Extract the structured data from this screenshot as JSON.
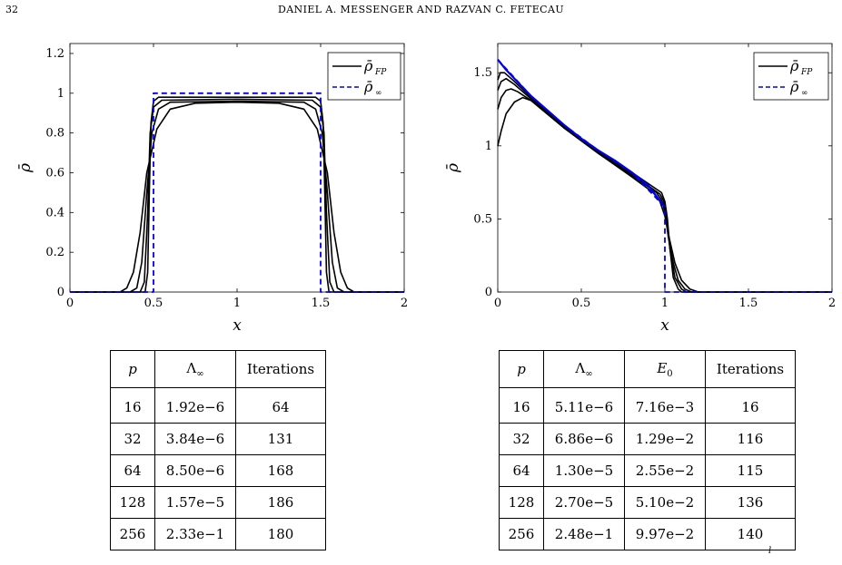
{
  "header": {
    "page_number": "32",
    "running_head": "DANIEL A. MESSENGER AND RAZVAN C. FETECAU"
  },
  "colors": {
    "black": "#000000",
    "blue": "#0000ee"
  },
  "chart_data": [
    {
      "type": "line",
      "xlabel": "x",
      "ylabel": "ρ̄",
      "xlim": [
        0,
        2
      ],
      "ylim": [
        0,
        1.25
      ],
      "xticks": [
        "0",
        "0.5",
        "1",
        "1.5",
        "2"
      ],
      "yticks": [
        "0",
        "0.2",
        "0.4",
        "0.6",
        "0.8",
        "1",
        "1.2"
      ],
      "xtick_values": [
        0,
        0.5,
        1,
        1.5,
        2
      ],
      "ytick_values": [
        0,
        0.2,
        0.4,
        0.6,
        0.8,
        1,
        1.2
      ],
      "legend": {
        "placement": "top-right",
        "entries": [
          {
            "label": "ρ̄",
            "sub": "FP",
            "style": "solid-black"
          },
          {
            "label": "ρ̄",
            "sub": "∞",
            "style": "dashed-blue"
          }
        ]
      },
      "series": [
        {
          "name": "ρ̄FP",
          "values_xy": [
            [
              0,
              0
            ],
            [
              0.3,
              0
            ],
            [
              0.34,
              0.02
            ],
            [
              0.38,
              0.1
            ],
            [
              0.42,
              0.3
            ],
            [
              0.46,
              0.6
            ],
            [
              0.52,
              0.82
            ],
            [
              0.6,
              0.92
            ],
            [
              0.75,
              0.95
            ],
            [
              1,
              0.955
            ],
            [
              1.25,
              0.95
            ],
            [
              1.4,
              0.92
            ],
            [
              1.48,
              0.82
            ],
            [
              1.54,
              0.6
            ],
            [
              1.58,
              0.3
            ],
            [
              1.62,
              0.1
            ],
            [
              1.66,
              0.02
            ],
            [
              1.7,
              0
            ],
            [
              2,
              0
            ]
          ]
        },
        {
          "name": "ρ̄FP",
          "values_xy": [
            [
              0,
              0
            ],
            [
              0.36,
              0
            ],
            [
              0.4,
              0.02
            ],
            [
              0.43,
              0.15
            ],
            [
              0.46,
              0.5
            ],
            [
              0.49,
              0.8
            ],
            [
              0.53,
              0.92
            ],
            [
              0.6,
              0.955
            ],
            [
              1,
              0.96
            ],
            [
              1.4,
              0.955
            ],
            [
              1.47,
              0.92
            ],
            [
              1.51,
              0.8
            ],
            [
              1.54,
              0.5
            ],
            [
              1.57,
              0.15
            ],
            [
              1.6,
              0.02
            ],
            [
              1.64,
              0
            ],
            [
              2,
              0
            ]
          ]
        },
        {
          "name": "ρ̄FP",
          "values_xy": [
            [
              0,
              0
            ],
            [
              0.42,
              0
            ],
            [
              0.445,
              0.05
            ],
            [
              0.465,
              0.4
            ],
            [
              0.48,
              0.8
            ],
            [
              0.5,
              0.93
            ],
            [
              0.55,
              0.965
            ],
            [
              1,
              0.97
            ],
            [
              1.45,
              0.965
            ],
            [
              1.5,
              0.93
            ],
            [
              1.52,
              0.8
            ],
            [
              1.535,
              0.4
            ],
            [
              1.555,
              0.05
            ],
            [
              1.58,
              0
            ],
            [
              2,
              0
            ]
          ]
        },
        {
          "name": "ρ̄FP",
          "values_xy": [
            [
              0,
              0
            ],
            [
              0.45,
              0
            ],
            [
              0.465,
              0.1
            ],
            [
              0.475,
              0.5
            ],
            [
              0.485,
              0.85
            ],
            [
              0.5,
              0.96
            ],
            [
              0.53,
              0.98
            ],
            [
              1,
              0.98
            ],
            [
              1.47,
              0.98
            ],
            [
              1.5,
              0.96
            ],
            [
              1.515,
              0.85
            ],
            [
              1.525,
              0.5
            ],
            [
              1.535,
              0.1
            ],
            [
              1.55,
              0
            ],
            [
              2,
              0
            ]
          ]
        },
        {
          "name": "ρ̄∞",
          "dashed": true,
          "values_xy": [
            [
              0,
              0
            ],
            [
              0.5,
              0
            ],
            [
              0.5,
              1
            ],
            [
              1.5,
              1
            ],
            [
              1.5,
              0
            ],
            [
              2,
              0
            ]
          ]
        }
      ]
    },
    {
      "type": "line",
      "xlabel": "x",
      "ylabel": "ρ̄",
      "xlim": [
        0,
        2
      ],
      "ylim": [
        0,
        1.7
      ],
      "xticks": [
        "0",
        "0.5",
        "1",
        "1.5",
        "2"
      ],
      "yticks": [
        "0",
        "0.5",
        "1",
        "1.5"
      ],
      "xtick_values": [
        0,
        0.5,
        1,
        1.5,
        2
      ],
      "ytick_values": [
        0,
        0.5,
        1,
        1.5
      ],
      "legend": {
        "placement": "top-right",
        "entries": [
          {
            "label": "ρ̄",
            "sub": "FP",
            "style": "solid-black"
          },
          {
            "label": "ρ̄",
            "sub": "∞",
            "style": "dashed-blue"
          }
        ]
      },
      "series": [
        {
          "name": "ρ̄FP",
          "values_xy": [
            [
              0,
              1
            ],
            [
              0.02,
              1.1
            ],
            [
              0.05,
              1.22
            ],
            [
              0.1,
              1.3
            ],
            [
              0.15,
              1.33
            ],
            [
              0.2,
              1.31
            ],
            [
              0.4,
              1.12
            ],
            [
              0.6,
              0.95
            ],
            [
              0.8,
              0.79
            ],
            [
              0.93,
              0.68
            ],
            [
              0.97,
              0.62
            ],
            [
              1,
              0.52
            ],
            [
              1.03,
              0.35
            ],
            [
              1.06,
              0.2
            ],
            [
              1.1,
              0.08
            ],
            [
              1.15,
              0.02
            ],
            [
              1.2,
              0
            ],
            [
              2,
              0
            ]
          ]
        },
        {
          "name": "ρ̄FP",
          "values_xy": [
            [
              0,
              1.25
            ],
            [
              0.02,
              1.33
            ],
            [
              0.05,
              1.38
            ],
            [
              0.08,
              1.39
            ],
            [
              0.12,
              1.37
            ],
            [
              0.2,
              1.31
            ],
            [
              0.4,
              1.12
            ],
            [
              0.6,
              0.95
            ],
            [
              0.8,
              0.8
            ],
            [
              0.95,
              0.68
            ],
            [
              0.98,
              0.63
            ],
            [
              1,
              0.55
            ],
            [
              1.02,
              0.38
            ],
            [
              1.05,
              0.2
            ],
            [
              1.08,
              0.08
            ],
            [
              1.12,
              0.02
            ],
            [
              1.16,
              0
            ],
            [
              2,
              0
            ]
          ]
        },
        {
          "name": "ρ̄FP",
          "values_xy": [
            [
              0,
              1.38
            ],
            [
              0.02,
              1.44
            ],
            [
              0.05,
              1.46
            ],
            [
              0.1,
              1.42
            ],
            [
              0.2,
              1.32
            ],
            [
              0.4,
              1.12
            ],
            [
              0.6,
              0.96
            ],
            [
              0.8,
              0.81
            ],
            [
              0.97,
              0.67
            ],
            [
              0.99,
              0.63
            ],
            [
              1.01,
              0.5
            ],
            [
              1.03,
              0.3
            ],
            [
              1.06,
              0.1
            ],
            [
              1.1,
              0.02
            ],
            [
              1.13,
              0
            ],
            [
              2,
              0
            ]
          ]
        },
        {
          "name": "ρ̄FP",
          "values_xy": [
            [
              0,
              1.45
            ],
            [
              0.015,
              1.5
            ],
            [
              0.04,
              1.5
            ],
            [
              0.1,
              1.44
            ],
            [
              0.2,
              1.33
            ],
            [
              0.4,
              1.13
            ],
            [
              0.6,
              0.97
            ],
            [
              0.8,
              0.82
            ],
            [
              0.98,
              0.68
            ],
            [
              1,
              0.62
            ],
            [
              1.015,
              0.5
            ],
            [
              1.03,
              0.3
            ],
            [
              1.05,
              0.1
            ],
            [
              1.08,
              0.02
            ],
            [
              1.1,
              0
            ],
            [
              2,
              0
            ]
          ]
        },
        {
          "name": "ρ̄∞",
          "dashed": true,
          "values_xy": [
            [
              0,
              1.59
            ],
            [
              0.2,
              1.34
            ],
            [
              0.4,
              1.14
            ],
            [
              0.6,
              0.97
            ],
            [
              0.8,
              0.82
            ],
            [
              1,
              0.58
            ],
            [
              1,
              0
            ],
            [
              2,
              0
            ]
          ]
        },
        {
          "name": "blue-solid-overlay",
          "solid_blue": true,
          "values_xy": [
            [
              0,
              1.59
            ],
            [
              0.05,
              1.52
            ],
            [
              0.1,
              1.46
            ],
            [
              0.2,
              1.34
            ],
            [
              0.3,
              1.24
            ],
            [
              0.4,
              1.14
            ],
            [
              0.5,
              1.05
            ],
            [
              0.6,
              0.97
            ],
            [
              0.7,
              0.9
            ],
            [
              0.8,
              0.82
            ],
            [
              0.9,
              0.73
            ],
            [
              1,
              0.58
            ]
          ]
        }
      ]
    }
  ],
  "table_left": {
    "headers": {
      "p": "p",
      "lambda": "Λ",
      "lambda_sub": "∞",
      "iterations": "Iterations"
    },
    "rows": [
      {
        "p": "16",
        "lambda": "1.92e−6",
        "iterations": "64"
      },
      {
        "p": "32",
        "lambda": "3.84e−6",
        "iterations": "131"
      },
      {
        "p": "64",
        "lambda": "8.50e−6",
        "iterations": "168"
      },
      {
        "p": "128",
        "lambda": "1.57e−5",
        "iterations": "186"
      },
      {
        "p": "256",
        "lambda": "2.33e−1",
        "iterations": "180"
      }
    ]
  },
  "table_right": {
    "headers": {
      "p": "p",
      "lambda": "Λ",
      "lambda_sub": "∞",
      "e0": "E",
      "e0_sub": "0",
      "iterations": "Iterations"
    },
    "rows": [
      {
        "p": "16",
        "lambda": "5.11e−6",
        "e0": "7.16e−3",
        "iterations": "16"
      },
      {
        "p": "32",
        "lambda": "6.86e−6",
        "e0": "1.29e−2",
        "iterations": "116"
      },
      {
        "p": "64",
        "lambda": "1.30e−5",
        "e0": "2.55e−2",
        "iterations": "115"
      },
      {
        "p": "128",
        "lambda": "2.70e−5",
        "e0": "5.10e−2",
        "iterations": "136"
      },
      {
        "p": "256",
        "lambda": "2.48e−1",
        "e0": "9.97e−2",
        "iterations": "140"
      }
    ]
  },
  "corner_mark": "l"
}
